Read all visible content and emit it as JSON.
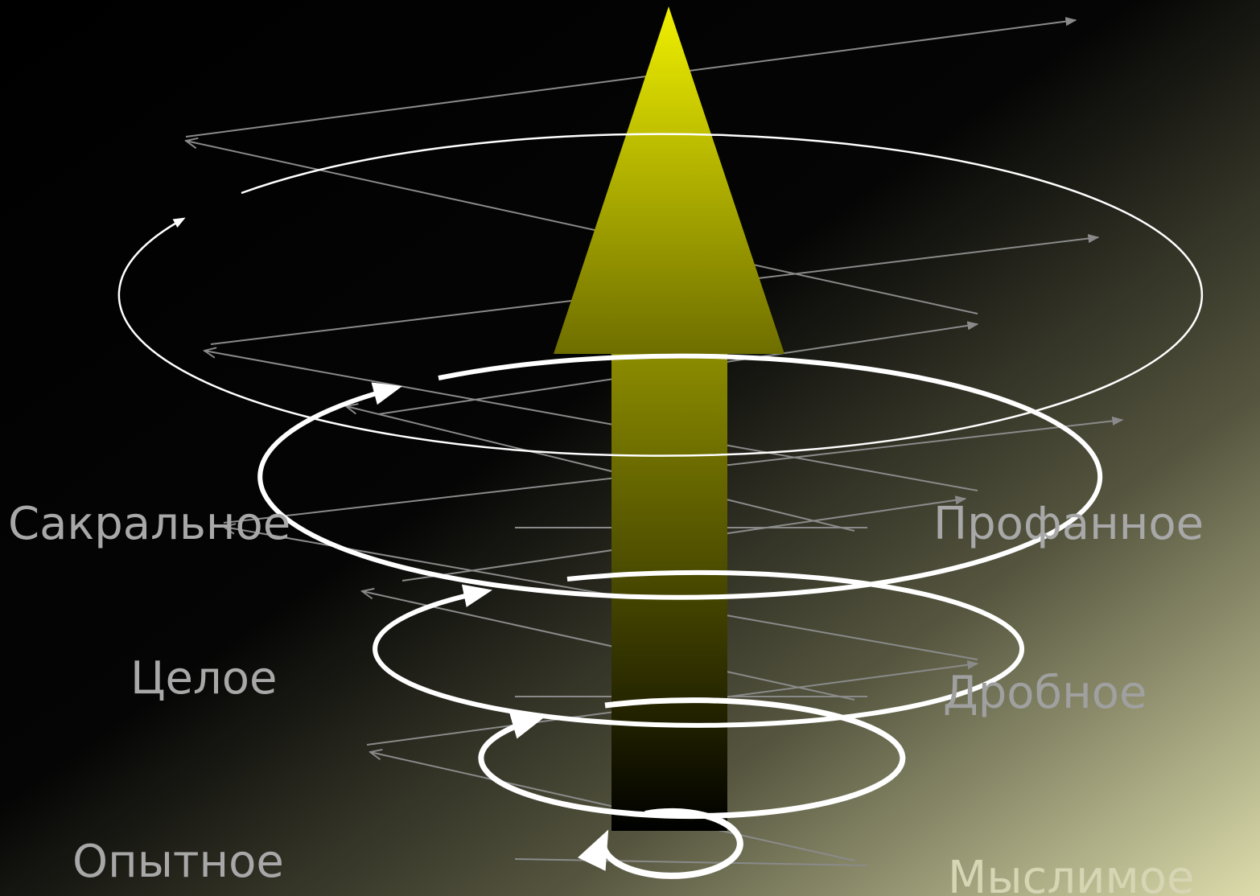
{
  "labels": {
    "sacred": "Сакральное",
    "profane": "Профанное",
    "whole": "Целое",
    "fractional": "Дробное",
    "experiential": "Опытное",
    "conceivable": "Мыслимое"
  }
}
